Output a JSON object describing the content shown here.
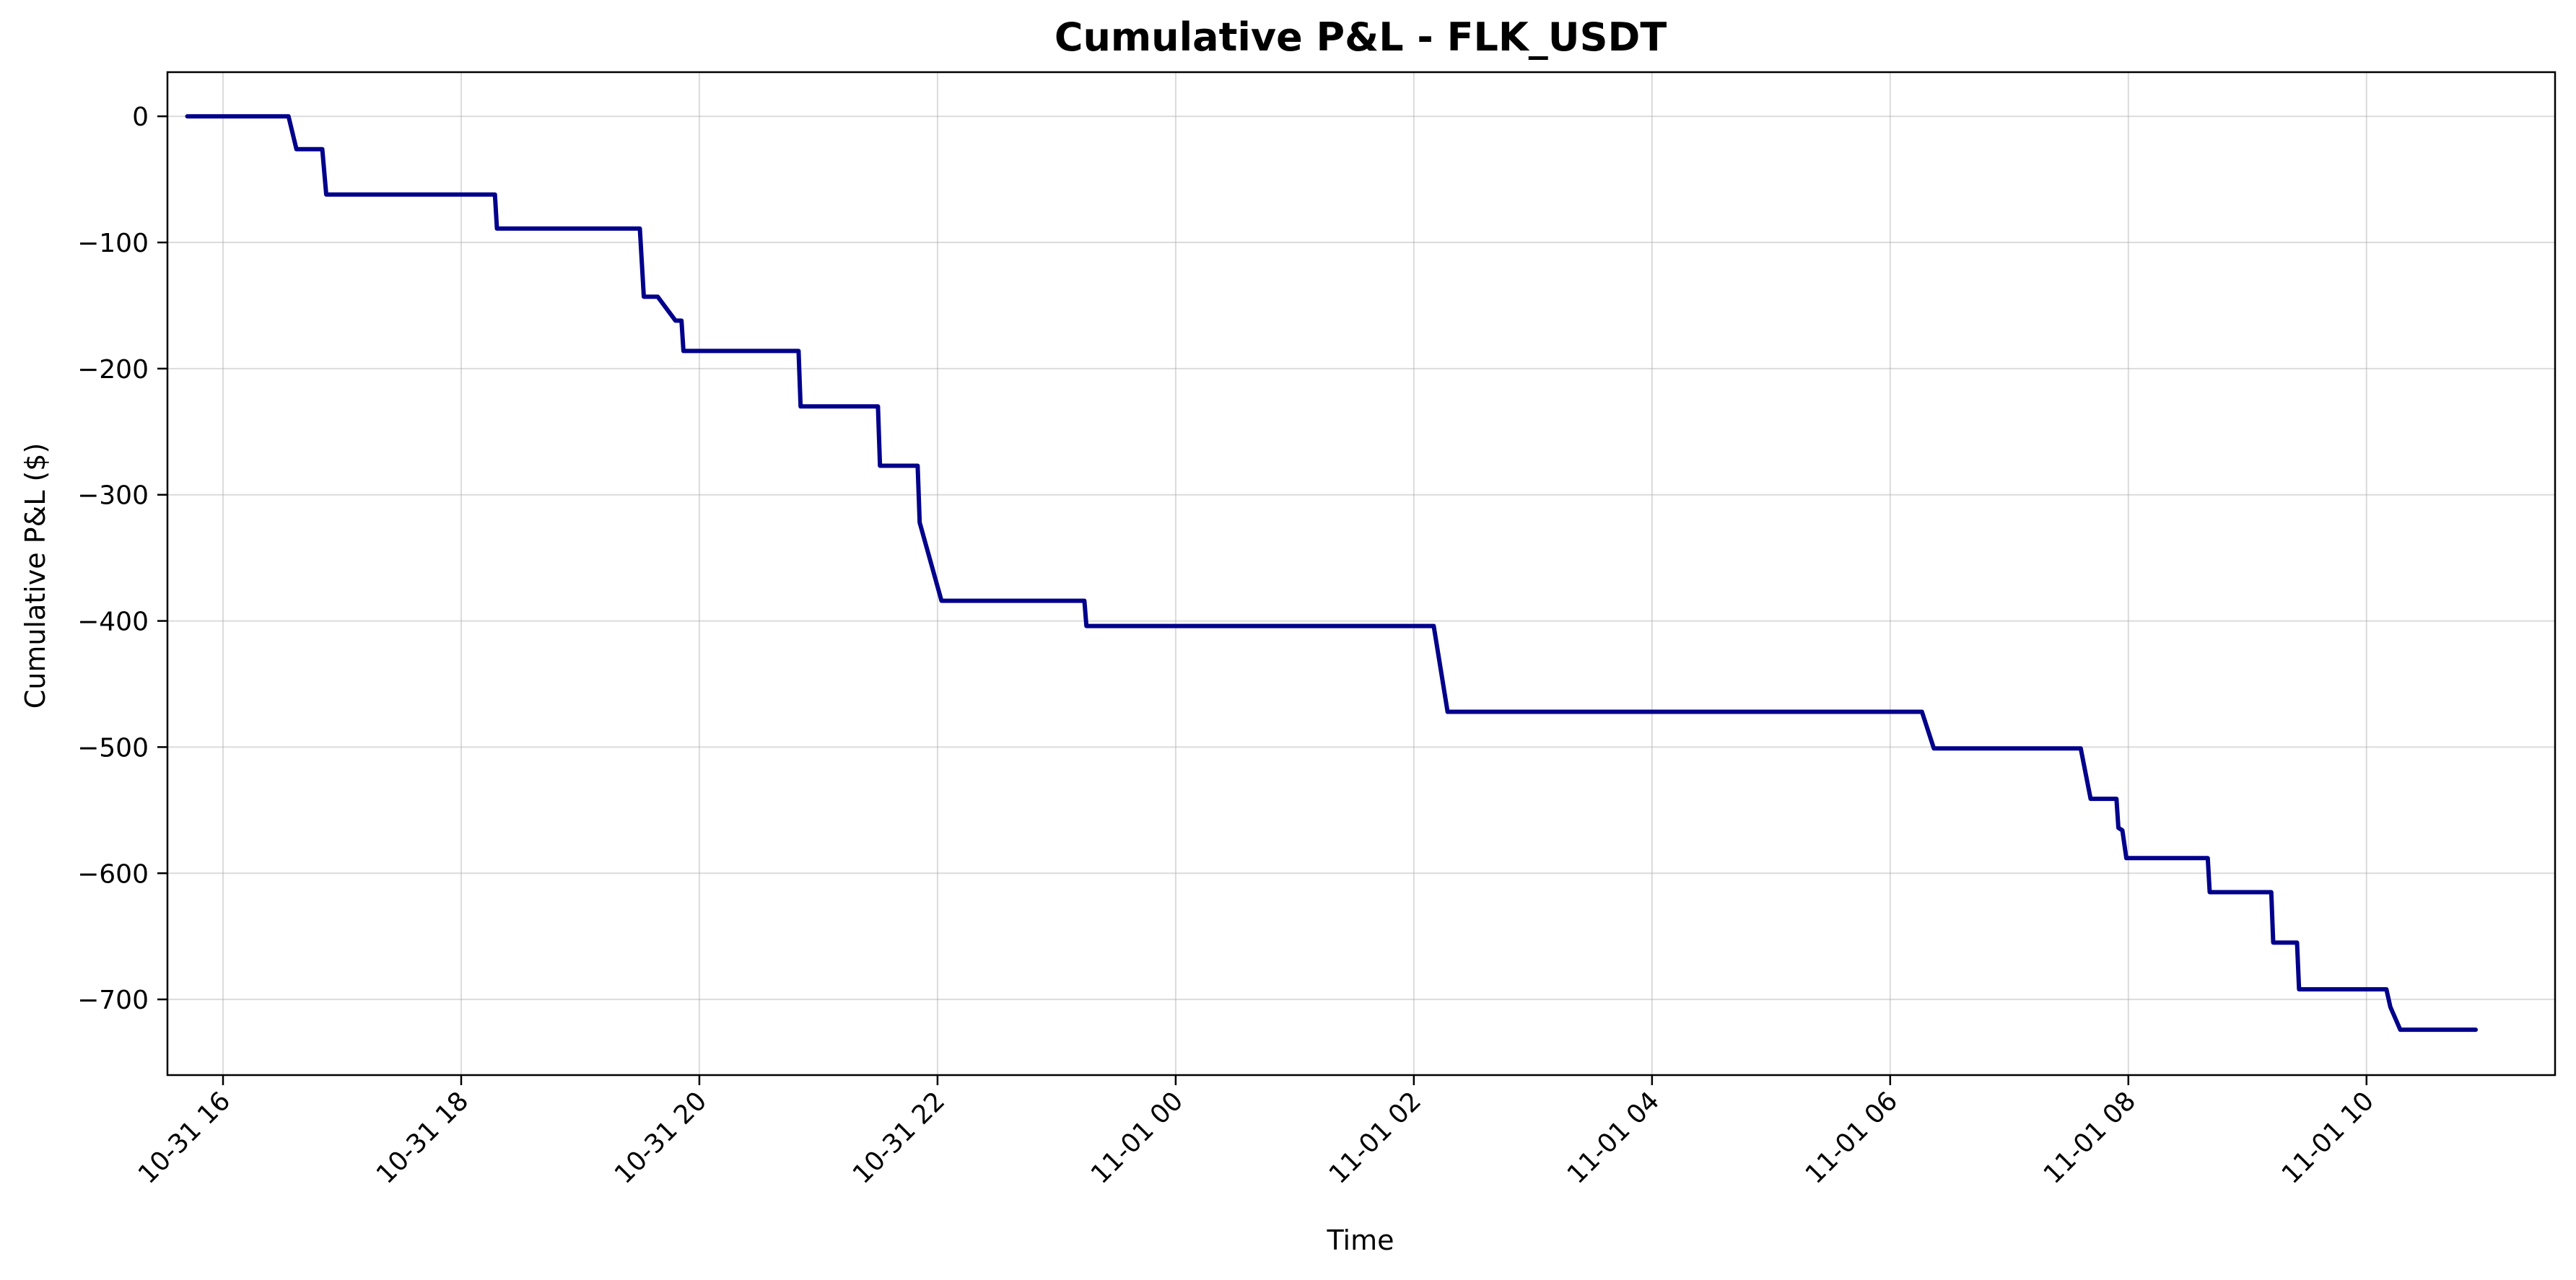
{
  "chart_data": {
    "type": "line",
    "title": "Cumulative P&L - FLK_USDT",
    "xlabel": "Time",
    "ylabel": "Cumulative P&L ($)",
    "xlim": [
      "2023-10-31 15:32",
      "2023-11-01 11:35"
    ],
    "ylim": [
      -760,
      35
    ],
    "x_ticks": [
      "10-31 16",
      "10-31 18",
      "10-31 20",
      "10-31 22",
      "11-01 00",
      "11-01 02",
      "11-01 04",
      "11-01 06",
      "11-01 08",
      "11-01 10"
    ],
    "x_tick_times": [
      "2023-10-31 16:00",
      "2023-10-31 18:00",
      "2023-10-31 20:00",
      "2023-10-31 22:00",
      "2023-11-01 00:00",
      "2023-11-01 02:00",
      "2023-11-01 04:00",
      "2023-11-01 06:00",
      "2023-11-01 08:00",
      "2023-11-01 10:00"
    ],
    "y_ticks": [
      "0",
      "−100",
      "−200",
      "−300",
      "−400",
      "−500",
      "−600",
      "−700"
    ],
    "y_tick_values": [
      0,
      -100,
      -200,
      -300,
      -400,
      -500,
      -600,
      -700
    ],
    "grid": true,
    "series": [
      {
        "color": "#00008b",
        "x": [
          "2023-10-31 15:42",
          "2023-10-31 16:33",
          "2023-10-31 16:37",
          "2023-10-31 16:50",
          "2023-10-31 16:52",
          "2023-10-31 18:17",
          "2023-10-31 18:18",
          "2023-10-31 19:30",
          "2023-10-31 19:32",
          "2023-10-31 19:39",
          "2023-10-31 19:48",
          "2023-10-31 19:51",
          "2023-10-31 19:52",
          "2023-10-31 20:50",
          "2023-10-31 20:51",
          "2023-10-31 21:30",
          "2023-10-31 21:31",
          "2023-10-31 21:50",
          "2023-10-31 21:51",
          "2023-10-31 22:02",
          "2023-10-31 23:14",
          "2023-10-31 23:15",
          "2023-11-01 02:10",
          "2023-11-01 02:17",
          "2023-11-01 06:16",
          "2023-11-01 06:22",
          "2023-11-01 07:36",
          "2023-11-01 07:41",
          "2023-11-01 07:54",
          "2023-11-01 07:55",
          "2023-11-01 07:57",
          "2023-11-01 07:59",
          "2023-11-01 08:40",
          "2023-11-01 08:41",
          "2023-11-01 09:12",
          "2023-11-01 09:13",
          "2023-11-01 09:25",
          "2023-11-01 09:26",
          "2023-11-01 10:10",
          "2023-11-01 10:12",
          "2023-11-01 10:17",
          "2023-11-01 10:55"
        ],
        "y": [
          0,
          0,
          -26,
          -26,
          -62,
          -62,
          -89,
          -89,
          -143,
          -143,
          -162,
          -162,
          -186,
          -186,
          -230,
          -230,
          -277,
          -277,
          -322,
          -384,
          -384,
          -404,
          -404,
          -472,
          -472,
          -501,
          -501,
          -541,
          -541,
          -564,
          -566,
          -588,
          -588,
          -615,
          -615,
          -655,
          -655,
          -692,
          -692,
          -706,
          -724,
          -724
        ]
      }
    ]
  }
}
